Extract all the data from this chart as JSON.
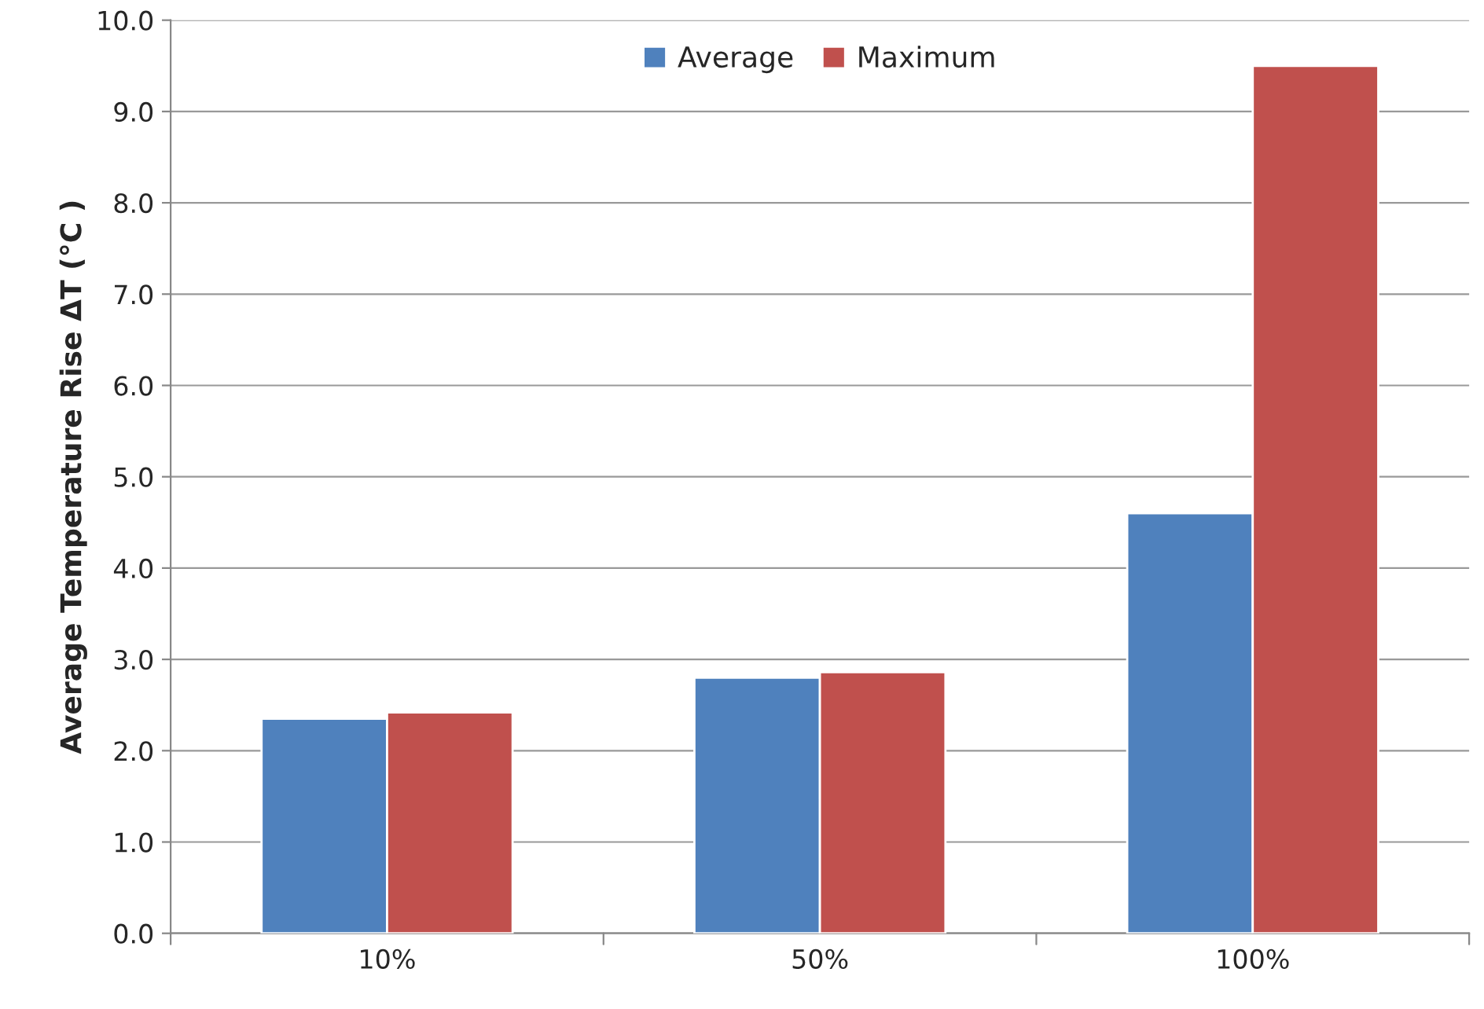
{
  "chart_data": {
    "type": "bar",
    "ylabel": "Average Temperature Rise ΔT (°C )",
    "categories": [
      "10%",
      "50%",
      "100%"
    ],
    "series": [
      {
        "name": "Average",
        "color": "#4f81bd",
        "values": [
          2.35,
          2.8,
          4.6
        ]
      },
      {
        "name": "Maximum",
        "color": "#c0504d",
        "values": [
          2.42,
          2.86,
          9.5
        ]
      }
    ],
    "ylim": [
      0,
      10
    ],
    "yticks": [
      {
        "value": 0,
        "label": "0.0"
      },
      {
        "value": 1,
        "label": "1.0"
      },
      {
        "value": 2,
        "label": "2.0"
      },
      {
        "value": 3,
        "label": "3.0"
      },
      {
        "value": 4,
        "label": "4.0"
      },
      {
        "value": 5,
        "label": "5.0"
      },
      {
        "value": 6,
        "label": "6.0"
      },
      {
        "value": 7,
        "label": "7.0"
      },
      {
        "value": 8,
        "label": "8.0"
      },
      {
        "value": 9,
        "label": "9.0"
      },
      {
        "value": 10,
        "label": "10.0"
      }
    ],
    "grid": "y",
    "legend": "top"
  }
}
